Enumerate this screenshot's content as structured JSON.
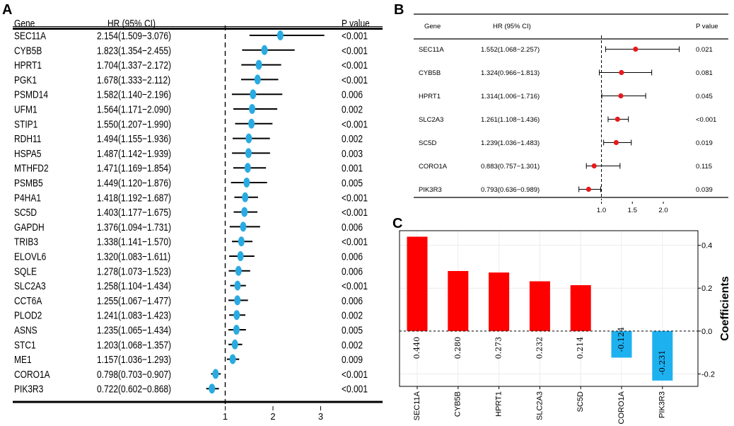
{
  "panel_labels": {
    "a": "A",
    "b": "B",
    "c": "C"
  },
  "chart_data": [
    {
      "panel": "A",
      "type": "forest",
      "headers": {
        "gene": "Gene",
        "hr": "HR (95% CI)",
        "p": "P value"
      },
      "x_ticks": [
        "1",
        "2",
        "3"
      ],
      "x_tick_values": [
        1,
        2,
        3
      ],
      "xlim": [
        0.55,
        3.35
      ],
      "reference_line": 1,
      "marker_color": "#29abe2",
      "rows": [
        {
          "gene": "SEC11A",
          "hr_text": "2.154(1.509−3.076)",
          "p": "<0.001",
          "hr": 2.154,
          "lo": 1.509,
          "hi": 3.076
        },
        {
          "gene": "CYB5B",
          "hr_text": "1.823(1.354−2.455)",
          "p": "<0.001",
          "hr": 1.823,
          "lo": 1.354,
          "hi": 2.455
        },
        {
          "gene": "HPRT1",
          "hr_text": "1.704(1.337−2.172)",
          "p": "<0.001",
          "hr": 1.704,
          "lo": 1.337,
          "hi": 2.172
        },
        {
          "gene": "PGK1",
          "hr_text": "1.678(1.333−2.112)",
          "p": "<0.001",
          "hr": 1.678,
          "lo": 1.333,
          "hi": 2.112
        },
        {
          "gene": "PSMD14",
          "hr_text": "1.582(1.140−2.196)",
          "p": "0.006",
          "hr": 1.582,
          "lo": 1.14,
          "hi": 2.196
        },
        {
          "gene": "UFM1",
          "hr_text": "1.564(1.171−2.090)",
          "p": "0.002",
          "hr": 1.564,
          "lo": 1.171,
          "hi": 2.09
        },
        {
          "gene": "STIP1",
          "hr_text": "1.550(1.207−1.990)",
          "p": "<0.001",
          "hr": 1.55,
          "lo": 1.207,
          "hi": 1.99
        },
        {
          "gene": "RDH11",
          "hr_text": "1.494(1.155−1.936)",
          "p": "0.002",
          "hr": 1.494,
          "lo": 1.155,
          "hi": 1.936
        },
        {
          "gene": "HSPA5",
          "hr_text": "1.487(1.142−1.939)",
          "p": "0.003",
          "hr": 1.487,
          "lo": 1.142,
          "hi": 1.939
        },
        {
          "gene": "MTHFD2",
          "hr_text": "1.471(1.169−1.854)",
          "p": "0.001",
          "hr": 1.471,
          "lo": 1.169,
          "hi": 1.854
        },
        {
          "gene": "PSMB5",
          "hr_text": "1.449(1.120−1.876)",
          "p": "0.005",
          "hr": 1.449,
          "lo": 1.12,
          "hi": 1.876
        },
        {
          "gene": "P4HA1",
          "hr_text": "1.418(1.192−1.687)",
          "p": "<0.001",
          "hr": 1.418,
          "lo": 1.192,
          "hi": 1.687
        },
        {
          "gene": "SC5D",
          "hr_text": "1.403(1.177−1.675)",
          "p": "<0.001",
          "hr": 1.403,
          "lo": 1.177,
          "hi": 1.675
        },
        {
          "gene": "GAPDH",
          "hr_text": "1.376(1.094−1.731)",
          "p": "0.006",
          "hr": 1.376,
          "lo": 1.094,
          "hi": 1.731
        },
        {
          "gene": "TRIB3",
          "hr_text": "1.338(1.141−1.570)",
          "p": "<0.001",
          "hr": 1.338,
          "lo": 1.141,
          "hi": 1.57
        },
        {
          "gene": "ELOVL6",
          "hr_text": "1.320(1.083−1.611)",
          "p": "0.006",
          "hr": 1.32,
          "lo": 1.083,
          "hi": 1.611
        },
        {
          "gene": "SQLE",
          "hr_text": "1.278(1.073−1.523)",
          "p": "0.006",
          "hr": 1.278,
          "lo": 1.073,
          "hi": 1.523
        },
        {
          "gene": "SLC2A3",
          "hr_text": "1.258(1.104−1.434)",
          "p": "<0.001",
          "hr": 1.258,
          "lo": 1.104,
          "hi": 1.434
        },
        {
          "gene": "CCT6A",
          "hr_text": "1.255(1.067−1.477)",
          "p": "0.006",
          "hr": 1.255,
          "lo": 1.067,
          "hi": 1.477
        },
        {
          "gene": "PLOD2",
          "hr_text": "1.241(1.083−1.423)",
          "p": "0.002",
          "hr": 1.241,
          "lo": 1.083,
          "hi": 1.423
        },
        {
          "gene": "ASNS",
          "hr_text": "1.235(1.065−1.434)",
          "p": "0.005",
          "hr": 1.235,
          "lo": 1.065,
          "hi": 1.434
        },
        {
          "gene": "STC1",
          "hr_text": "1.203(1.068−1.357)",
          "p": "0.002",
          "hr": 1.203,
          "lo": 1.068,
          "hi": 1.357
        },
        {
          "gene": "ME1",
          "hr_text": "1.157(1.036−1.293)",
          "p": "0.009",
          "hr": 1.157,
          "lo": 1.036,
          "hi": 1.293
        },
        {
          "gene": "CORO1A",
          "hr_text": "0.798(0.703−0.907)",
          "p": "<0.001",
          "hr": 0.798,
          "lo": 0.703,
          "hi": 0.907
        },
        {
          "gene": "PIK3R3",
          "hr_text": "0.722(0.602−0.868)",
          "p": "<0.001",
          "hr": 0.722,
          "lo": 0.602,
          "hi": 0.868
        }
      ]
    },
    {
      "panel": "B",
      "type": "forest",
      "headers": {
        "gene": "Gene",
        "hr": "HR (95% CI)",
        "p": "P value"
      },
      "x_ticks": [
        "1.0",
        "1.5",
        "2.0"
      ],
      "x_tick_values": [
        1.0,
        1.5,
        2.0
      ],
      "xlim": [
        0.5,
        2.34
      ],
      "reference_line": 1,
      "marker_color": "#e8191c",
      "rows": [
        {
          "gene": "SEC11A",
          "hr_text": "1.552(1.068−2.257)",
          "p": "0.021",
          "hr": 1.552,
          "lo": 1.068,
          "hi": 2.257
        },
        {
          "gene": "CYB5B",
          "hr_text": "1.324(0.966−1.813)",
          "p": "0.081",
          "hr": 1.324,
          "lo": 0.966,
          "hi": 1.813
        },
        {
          "gene": "HPRT1",
          "hr_text": "1.314(1.006−1.716)",
          "p": "0.045",
          "hr": 1.314,
          "lo": 1.006,
          "hi": 1.716
        },
        {
          "gene": "SLC2A3",
          "hr_text": "1.261(1.108−1.436)",
          "p": "<0.001",
          "hr": 1.261,
          "lo": 1.108,
          "hi": 1.436
        },
        {
          "gene": "SC5D",
          "hr_text": "1.239(1.036−1.483)",
          "p": "0.019",
          "hr": 1.239,
          "lo": 1.036,
          "hi": 1.483
        },
        {
          "gene": "CORO1A",
          "hr_text": "0.883(0.757−1.301)",
          "p": "0.115",
          "hr": 0.883,
          "lo": 0.757,
          "hi": 1.301
        },
        {
          "gene": "PIK3R3",
          "hr_text": "0.793(0.636−0.989)",
          "p": "0.039",
          "hr": 0.793,
          "lo": 0.636,
          "hi": 0.989
        }
      ]
    },
    {
      "panel": "C",
      "type": "bar",
      "ylabel": "Coefficients",
      "categories": [
        "SEC11A",
        "CYB5B",
        "HPRT1",
        "SLC2A3",
        "SC5D",
        "CORO1A",
        "PIK3R3"
      ],
      "values": [
        0.44,
        0.28,
        0.273,
        0.232,
        0.214,
        -0.124,
        -0.231
      ],
      "value_labels": [
        "0.440",
        "0.280",
        "0.273",
        "0.232",
        "0.214",
        "-0.124",
        "-0.231"
      ],
      "yticks": [
        -0.2,
        0.0,
        0.2,
        0.4
      ],
      "ytick_labels": [
        "-0.2",
        "0.0",
        "0.2",
        "0.4"
      ],
      "ylim": [
        -0.258,
        0.468
      ],
      "colors": {
        "positive": "#ff0000",
        "negative": "#1eb1f0"
      }
    }
  ]
}
